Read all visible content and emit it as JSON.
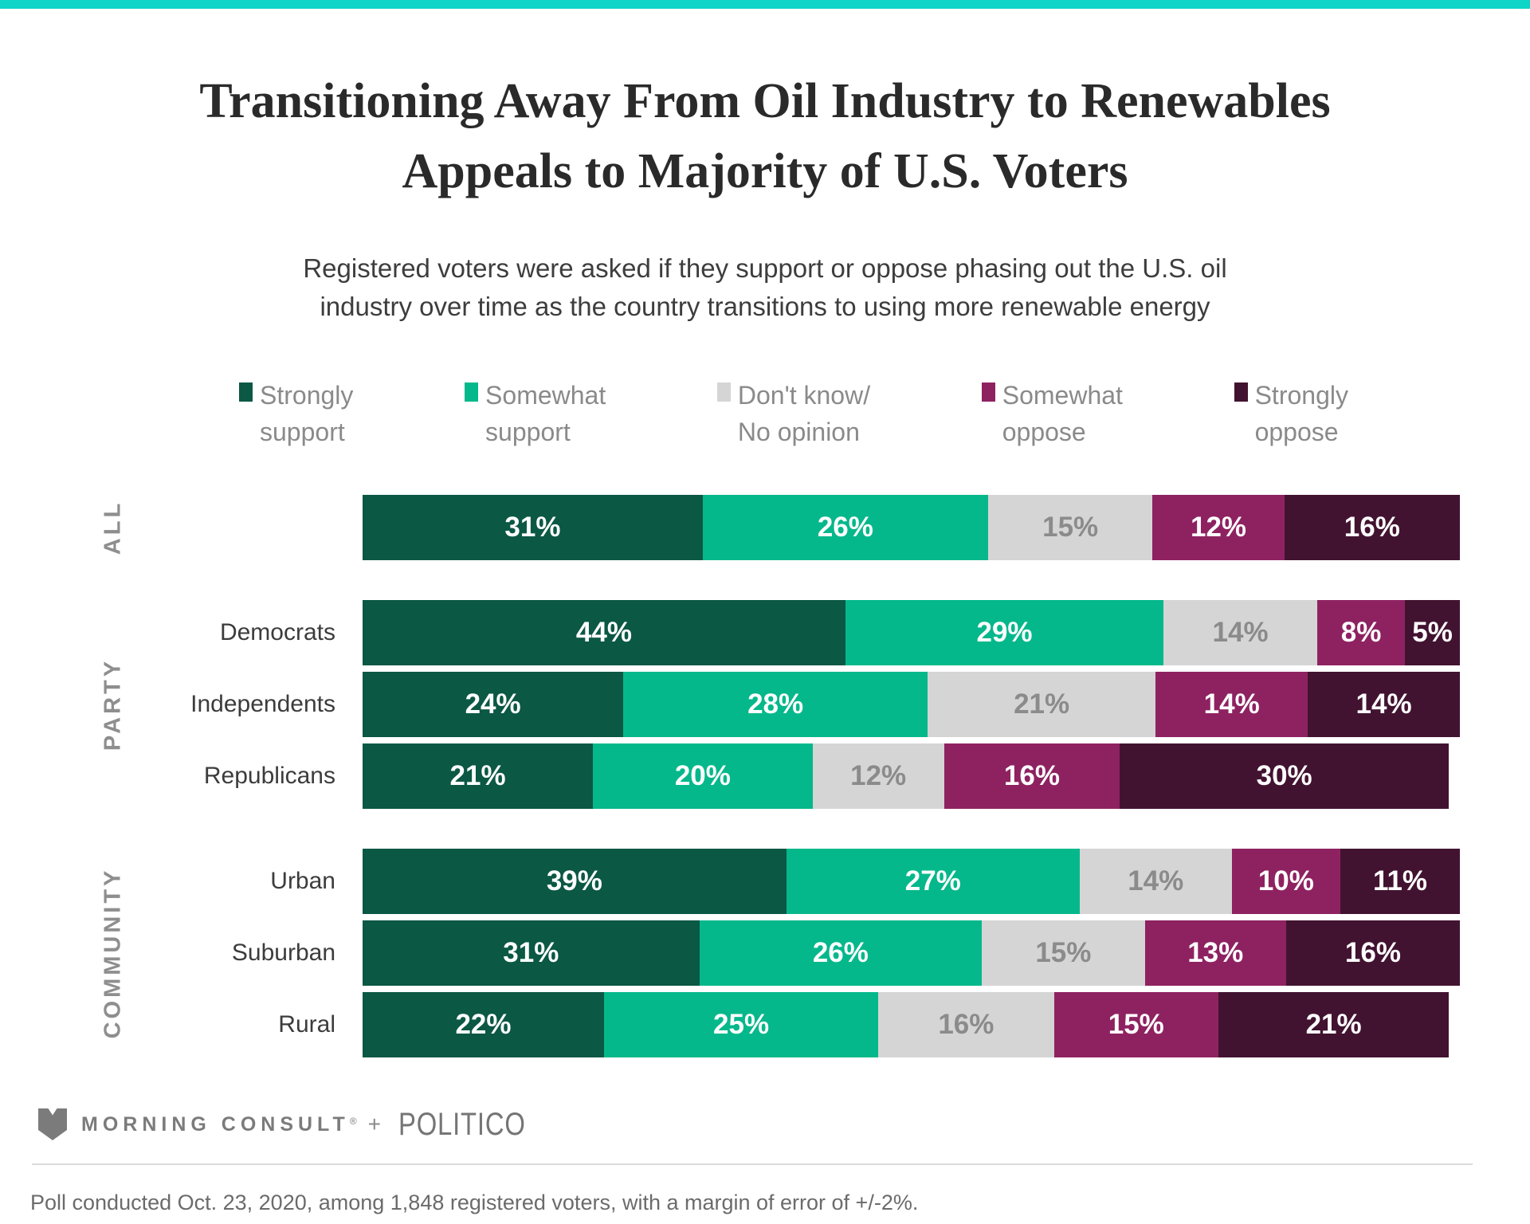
{
  "page": {
    "accent_color": "#0FD5C8",
    "title_line1": "Transitioning Away From Oil Industry to Renewables",
    "title_line2": "Appeals to Majority of U.S. Voters",
    "subtitle": "Registered voters were asked if they support or oppose phasing out the U.S. oil industry over time as the country transitions to using more renewable energy"
  },
  "chart_data": {
    "type": "bar",
    "variant": "horizontal-stacked-100",
    "unit": "%",
    "xlim": [
      0,
      100
    ],
    "legend_position": "top",
    "series": [
      {
        "name": "Strongly support",
        "label_lines": [
          "Strongly",
          "support"
        ],
        "color": "#0B5844",
        "text_color": "#FFFFFF"
      },
      {
        "name": "Somewhat support",
        "label_lines": [
          "Somewhat",
          "support"
        ],
        "color": "#05B88B",
        "text_color": "#FFFFFF"
      },
      {
        "name": "Don't know/ No opinion",
        "label_lines": [
          "Don't know/",
          "No opinion"
        ],
        "color": "#D5D5D5",
        "text_color": "#8B8B8B"
      },
      {
        "name": "Somewhat oppose",
        "label_lines": [
          "Somewhat",
          "oppose"
        ],
        "color": "#8E2261",
        "text_color": "#FFFFFF"
      },
      {
        "name": "Strongly oppose",
        "label_lines": [
          "Strongly",
          "oppose"
        ],
        "color": "#421330",
        "text_color": "#FFFFFF"
      }
    ],
    "groups": [
      {
        "label": "ALL",
        "rows": [
          {
            "label": "",
            "values": [
              31,
              26,
              15,
              12,
              16
            ]
          }
        ]
      },
      {
        "label": "PARTY",
        "rows": [
          {
            "label": "Democrats",
            "values": [
              44,
              29,
              14,
              8,
              5
            ]
          },
          {
            "label": "Independents",
            "values": [
              24,
              28,
              21,
              14,
              14
            ]
          },
          {
            "label": "Republicans",
            "values": [
              21,
              20,
              12,
              16,
              30
            ]
          }
        ]
      },
      {
        "label": "COMMUNITY",
        "rows": [
          {
            "label": "Urban",
            "values": [
              39,
              27,
              14,
              10,
              11
            ]
          },
          {
            "label": "Suburban",
            "values": [
              31,
              26,
              15,
              13,
              16
            ]
          },
          {
            "label": "Rural",
            "values": [
              22,
              25,
              16,
              15,
              21
            ]
          }
        ]
      }
    ]
  },
  "footer": {
    "brand1": "MORNING CONSULT",
    "brand1_reg": "®",
    "plus": "+",
    "brand2": "POLITICO",
    "note": "Poll conducted Oct. 23, 2020, among 1,848 registered voters, with a margin of error of +/-2%."
  }
}
